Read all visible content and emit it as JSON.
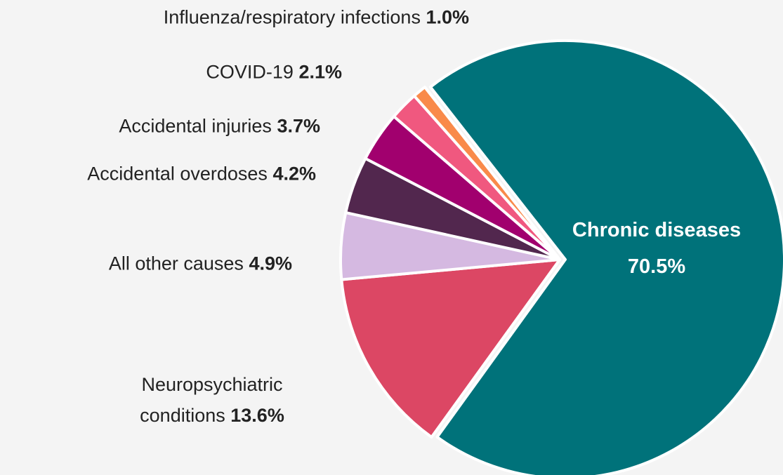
{
  "chart_data": {
    "type": "pie",
    "categories": [
      "Chronic diseases",
      "Neuropsychiatric conditions",
      "All other causes",
      "Accidental overdoses",
      "Accidental injuries",
      "COVID-19",
      "Influenza/respiratory infections"
    ],
    "values": [
      70.5,
      13.6,
      4.9,
      4.2,
      3.7,
      2.1,
      1.0
    ],
    "value_labels": [
      "70.5%",
      "13.6%",
      "4.9%",
      "4.2%",
      "3.7%",
      "2.1%",
      "1.0%"
    ],
    "colors": [
      "#00727a",
      "#dc4764",
      "#d5b9e1",
      "#52274e",
      "#a1006e",
      "#f0587f",
      "#f98a4a"
    ]
  }
}
